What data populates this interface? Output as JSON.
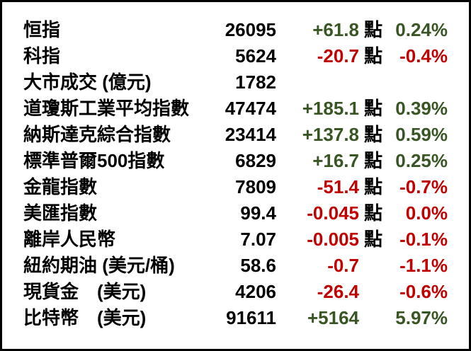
{
  "table": {
    "unit_suffix": "點",
    "colors": {
      "up": "#375623",
      "down": "#C00000",
      "text": "#000000",
      "border": "#000000",
      "background": "#FFFFFF"
    },
    "rows": [
      {
        "label": "恒指",
        "value": "26095",
        "change": "+61.8",
        "unit": true,
        "pct": "0.24%",
        "direction": "up"
      },
      {
        "label": "科指",
        "value": "5624",
        "change": "-20.7",
        "unit": true,
        "pct": "-0.4%",
        "direction": "down"
      },
      {
        "label": "大市成交 (億元)",
        "value": "1782",
        "change": "",
        "unit": false,
        "pct": "",
        "direction": "none"
      },
      {
        "label": "道瓊斯工業平均指數",
        "value": "47474",
        "change": "+185.1",
        "unit": true,
        "pct": "0.39%",
        "direction": "up"
      },
      {
        "label": "納斯達克綜合指數",
        "value": "23414",
        "change": "+137.8",
        "unit": true,
        "pct": "0.59%",
        "direction": "up"
      },
      {
        "label": "標準普爾500指數",
        "value": "6829",
        "change": "+16.7",
        "unit": true,
        "pct": "0.25%",
        "direction": "up"
      },
      {
        "label": "金龍指數",
        "value": "7809",
        "change": "-51.4",
        "unit": true,
        "pct": "-0.7%",
        "direction": "down"
      },
      {
        "label": "美匯指數",
        "value": "99.4",
        "change": "-0.045",
        "unit": true,
        "pct": "0.0%",
        "direction": "down"
      },
      {
        "label": "離岸人民幣",
        "value": "7.07",
        "change": "-0.005",
        "unit": true,
        "pct": "-0.1%",
        "direction": "down"
      },
      {
        "label": "紐約期油 (美元/桶)",
        "value": "58.6",
        "change": "-0.7",
        "unit": false,
        "pct": "-1.1%",
        "direction": "down"
      },
      {
        "label": "現貨金　(美元)",
        "value": "4206",
        "change": "-26.4",
        "unit": false,
        "pct": "-0.6%",
        "direction": "down"
      },
      {
        "label": "比特幣　(美元)",
        "value": "91611",
        "change": "+5164",
        "unit": false,
        "pct": "5.97%",
        "direction": "up"
      }
    ]
  }
}
